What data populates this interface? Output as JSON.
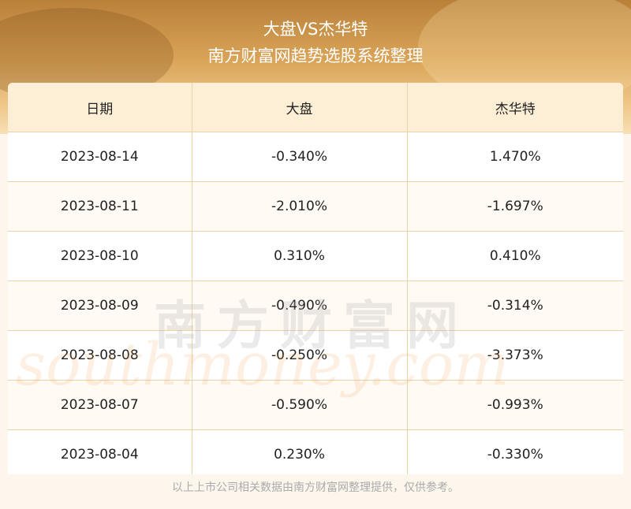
{
  "header": {
    "title": "大盘VS杰华特",
    "subtitle": "南方财富网趋势选股系统整理"
  },
  "table": {
    "columns": [
      "日期",
      "大盘",
      "杰华特"
    ],
    "rows": [
      [
        "2023-08-14",
        "-0.340%",
        "1.470%"
      ],
      [
        "2023-08-11",
        "-2.010%",
        "-1.697%"
      ],
      [
        "2023-08-10",
        "0.310%",
        "0.410%"
      ],
      [
        "2023-08-09",
        "-0.490%",
        "-0.314%"
      ],
      [
        "2023-08-08",
        "-0.250%",
        "-3.373%"
      ],
      [
        "2023-08-07",
        "-0.590%",
        "-0.993%"
      ],
      [
        "2023-08-04",
        "0.230%",
        "-0.330%"
      ]
    ]
  },
  "watermark": {
    "cn": "南方财富网",
    "en": "southmoney.com"
  },
  "footer": {
    "note": "以上上市公司相关数据由南方财富网整理提供，仅供参考。"
  },
  "colors": {
    "header_row_bg": "#fdeed6",
    "grid_line": "#ecd2a8",
    "banner_gold": "#d9a458"
  }
}
